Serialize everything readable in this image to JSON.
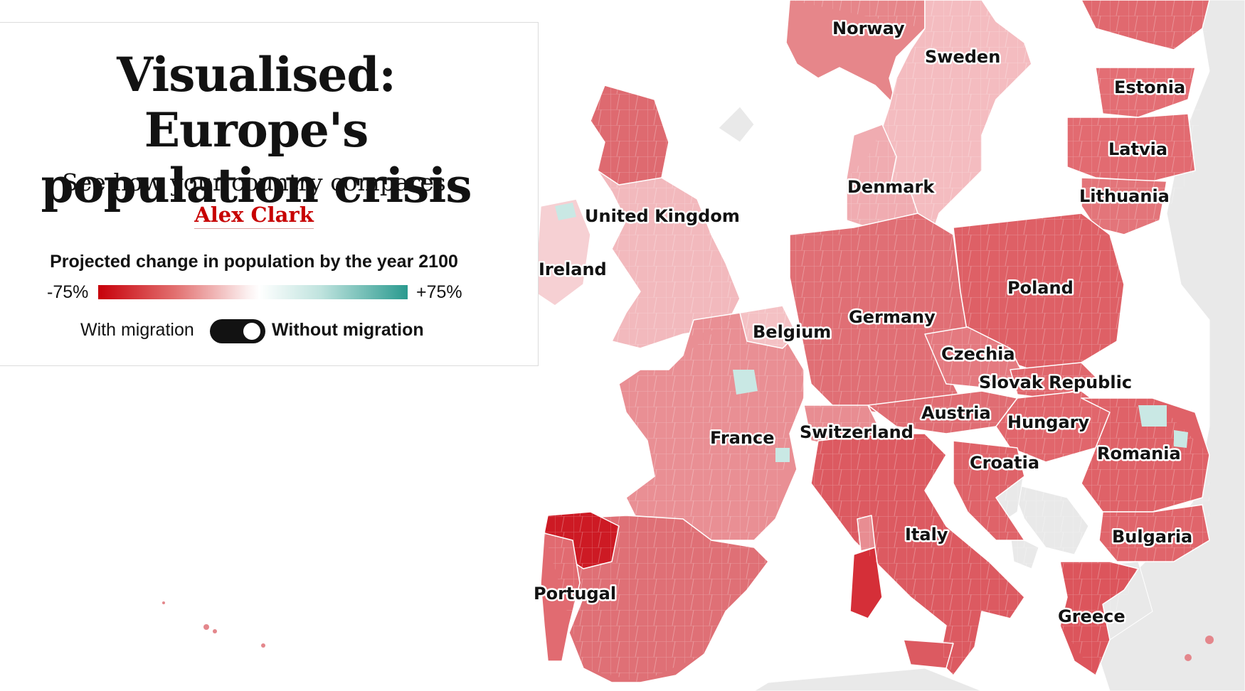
{
  "header": {
    "title": "Visualised: Europe's population crisis",
    "subtitle": "See how your country compares",
    "byline": "Alex Clark"
  },
  "legend": {
    "title": "Projected change in population by the year 2100",
    "min_label": "-75%",
    "max_label": "+75%",
    "min_value": -75,
    "max_value": 75,
    "colors": {
      "min": "#c7000a",
      "mid": "#ffffff",
      "max": "#2a9a8f"
    }
  },
  "toggle": {
    "left_label": "With migration",
    "right_label": "Without migration",
    "selected": "Without migration"
  },
  "map": {
    "colors": {
      "sea": "#ffffff",
      "non_data_land": "#e9e9e9",
      "border": "#8c8c8c"
    },
    "country_labels": {
      "norway": "Norway",
      "sweden": "Sweden",
      "estonia": "Estonia",
      "latvia": "Latvia",
      "lithuania": "Lithuania",
      "denmark": "Denmark",
      "uk": "United Kingdom",
      "ireland": "Ireland",
      "poland": "Poland",
      "germany": "Germany",
      "belgium": "Belgium",
      "czechia": "Czechia",
      "slovak": "Slovak Republic",
      "austria": "Austria",
      "hungary": "Hungary",
      "switzerland": "Switzerland",
      "france": "France",
      "romania": "Romania",
      "croatia": "Croatia",
      "italy": "Italy",
      "bulgaria": "Bulgaria",
      "portugal": "Portugal",
      "greece": "Greece"
    }
  }
}
